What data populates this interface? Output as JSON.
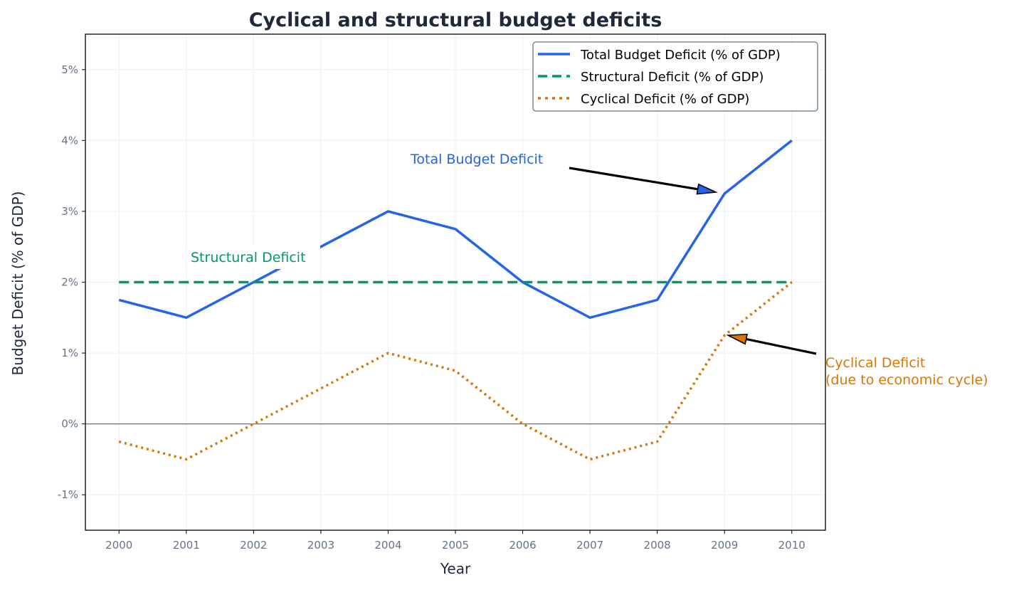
{
  "chart_data": {
    "type": "line",
    "title": "Cyclical and structural budget deficits",
    "xlabel": "Year",
    "ylabel": "Budget Deficit (% of GDP)",
    "x": [
      2000,
      2001,
      2002,
      2003,
      2004,
      2005,
      2006,
      2007,
      2008,
      2009,
      2010
    ],
    "xlim": [
      1999.5,
      2010.5
    ],
    "ylim": [
      -1.5,
      5.5
    ],
    "yticks": [
      -1,
      0,
      1,
      2,
      3,
      4,
      5
    ],
    "ytick_labels": [
      "-1%",
      "0%",
      "1%",
      "2%",
      "3%",
      "4%",
      "5%"
    ],
    "xtick_labels": [
      "2000",
      "2001",
      "2002",
      "2003",
      "2004",
      "2005",
      "2006",
      "2007",
      "2008",
      "2009",
      "2010"
    ],
    "grid": true,
    "legend_position": "top-right",
    "series": [
      {
        "name": "Total Budget Deficit (% of GDP)",
        "style": "solid",
        "color": "#2563eb",
        "values": [
          1.75,
          1.5,
          2.0,
          2.5,
          3.0,
          2.75,
          2.0,
          1.5,
          1.75,
          3.25,
          4.0
        ]
      },
      {
        "name": "Structural Deficit (% of GDP)",
        "style": "dashed",
        "color": "#059669",
        "values": [
          2.0,
          2.0,
          2.0,
          2.0,
          2.0,
          2.0,
          2.0,
          2.0,
          2.0,
          2.0,
          2.0
        ]
      },
      {
        "name": "Cyclical Deficit (% of GDP)",
        "style": "dotted",
        "color": "#d97706",
        "values": [
          -0.25,
          -0.5,
          0.0,
          0.5,
          1.0,
          0.75,
          0.0,
          -0.5,
          -0.25,
          1.25,
          2.0
        ]
      }
    ],
    "annotations": [
      {
        "text": "Total Budget Deficit",
        "color": "#2563eb",
        "points_to": [
          2009,
          3.25
        ]
      },
      {
        "text": "Structural Deficit",
        "color": "#059669"
      },
      {
        "text_lines": [
          "Cyclical Deficit",
          "(due to economic cycle)"
        ],
        "color": "#d97706",
        "points_to": [
          2009,
          1.25
        ]
      }
    ],
    "zero_line_color": "#64748b"
  }
}
